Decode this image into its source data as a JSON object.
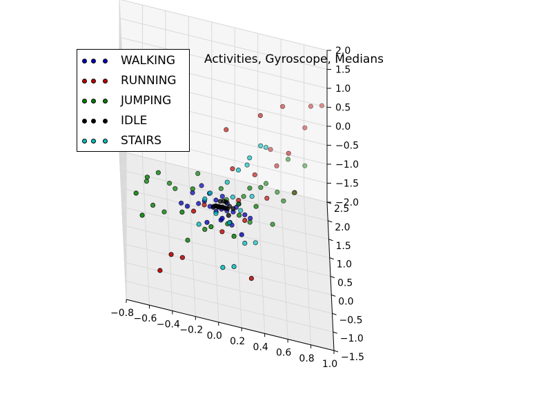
{
  "chart_data": {
    "type": "scatter",
    "projection": "3d",
    "title": "Activities, Gyroscope, Medians",
    "xlabel": "",
    "ylabel": "",
    "zlabel": "",
    "xlim": [
      -0.8,
      1.0
    ],
    "ylim": [
      -1.5,
      2.5
    ],
    "zlim": [
      -2.0,
      2.0
    ],
    "x_ticks": [
      "−0.8",
      "−0.6",
      "−0.4",
      "−0.2",
      "0.0",
      "0.2",
      "0.4",
      "0.6",
      "0.8",
      "1.0"
    ],
    "y_ticks": [
      "−1.5",
      "−1.0",
      "−0.5",
      "0.0",
      "0.5",
      "1.0",
      "1.5",
      "2.0",
      "2.5"
    ],
    "z_ticks": [
      "−2.0",
      "−1.5",
      "−1.0",
      "−0.5",
      "0.0",
      "0.5",
      "1.0",
      "1.5",
      "2.0"
    ],
    "grid": true,
    "legend_position": "top-left",
    "series": [
      {
        "name": "WALKING",
        "color": "#0000bf",
        "points": [
          [
            0.02,
            0.05,
            -0.45
          ],
          [
            0.05,
            0.1,
            -0.55
          ],
          [
            0.08,
            0.0,
            -0.4
          ],
          [
            -0.05,
            0.15,
            -0.6
          ],
          [
            0.0,
            -0.05,
            -0.5
          ],
          [
            0.1,
            0.2,
            -0.45
          ],
          [
            -0.1,
            0.0,
            -0.35
          ],
          [
            0.12,
            -0.1,
            -0.65
          ],
          [
            0.15,
            0.05,
            -0.5
          ],
          [
            -0.02,
            0.25,
            -0.7
          ],
          [
            0.2,
            0.1,
            -0.3
          ],
          [
            0.04,
            -0.2,
            -0.55
          ],
          [
            -0.15,
            0.1,
            -0.55
          ],
          [
            0.06,
            0.3,
            -0.4
          ],
          [
            -0.08,
            -0.15,
            -0.75
          ],
          [
            0.18,
            0.3,
            -0.6
          ],
          [
            0.25,
            0.0,
            -0.45
          ],
          [
            -0.2,
            0.2,
            -0.4
          ],
          [
            0.1,
            0.4,
            -0.85
          ],
          [
            0.0,
            0.0,
            -0.25
          ],
          [
            -0.3,
            0.1,
            -0.65
          ],
          [
            0.3,
            0.2,
            -0.7
          ],
          [
            0.05,
            -0.3,
            -0.4
          ],
          [
            -0.12,
            0.35,
            -0.3
          ],
          [
            0.22,
            -0.2,
            -0.8
          ],
          [
            -0.25,
            -0.1,
            -0.5
          ],
          [
            0.14,
            0.15,
            -0.95
          ],
          [
            -0.05,
            0.45,
            -0.55
          ]
        ]
      },
      {
        "name": "RUNNING",
        "color": "#bf0000",
        "points": [
          [
            0.6,
            1.5,
            1.2
          ],
          [
            0.85,
            1.9,
            1.0
          ],
          [
            0.95,
            2.2,
            0.8
          ],
          [
            0.4,
            1.0,
            1.3
          ],
          [
            0.1,
            0.8,
            0.9
          ],
          [
            0.15,
            0.5,
            0.2
          ],
          [
            -0.4,
            -0.8,
            -1.2
          ],
          [
            -0.5,
            -1.0,
            -1.5
          ],
          [
            0.3,
            -0.5,
            -1.6
          ],
          [
            0.5,
            1.8,
            -0.3
          ],
          [
            0.7,
            1.2,
            -0.7
          ],
          [
            0.45,
            0.6,
            -0.45
          ],
          [
            0.65,
            1.4,
            0.1
          ],
          [
            -0.2,
            -0.4,
            -0.3
          ],
          [
            0.2,
            0.3,
            -0.4
          ],
          [
            0.05,
            -0.2,
            -0.85
          ],
          [
            -0.3,
            -0.6,
            -1.4
          ],
          [
            0.25,
            0.0,
            -0.6
          ],
          [
            0.8,
            2.0,
            0.3
          ],
          [
            -0.1,
            0.1,
            -0.55
          ],
          [
            0.35,
            0.9,
            -0.2
          ],
          [
            0.55,
            1.6,
            -0.5
          ]
        ]
      },
      {
        "name": "JUMPING",
        "color": "#007f00",
        "points": [
          [
            -0.7,
            -0.5,
            -0.1
          ],
          [
            -0.6,
            -0.3,
            0.2
          ],
          [
            -0.65,
            -0.7,
            -0.45
          ],
          [
            -0.5,
            0.0,
            0.1
          ],
          [
            -0.55,
            -0.2,
            -0.6
          ],
          [
            -0.4,
            0.2,
            -0.3
          ],
          [
            0.8,
            2.0,
            -0.7
          ],
          [
            0.7,
            1.5,
            -1.0
          ],
          [
            0.6,
            1.0,
            -0.8
          ],
          [
            0.3,
            0.5,
            -0.2
          ],
          [
            0.2,
            0.3,
            -0.5
          ],
          [
            0.1,
            0.0,
            -0.8
          ],
          [
            0.4,
            0.8,
            -0.4
          ],
          [
            -0.3,
            -0.4,
            -0.4
          ],
          [
            -0.2,
            0.1,
            -0.2
          ],
          [
            0.0,
            0.2,
            -0.6
          ],
          [
            0.5,
            0.6,
            -1.1
          ],
          [
            -0.1,
            -0.2,
            -0.9
          ],
          [
            0.35,
            0.2,
            -0.35
          ],
          [
            -0.35,
            0.3,
            -0.5
          ],
          [
            0.15,
            -0.4,
            -0.7
          ],
          [
            0.25,
            0.7,
            -0.65
          ],
          [
            -0.45,
            -0.1,
            -0.8
          ],
          [
            0.45,
            1.1,
            -0.55
          ],
          [
            0.05,
            0.4,
            -0.3
          ],
          [
            -0.25,
            -0.3,
            -1.2
          ],
          [
            0.55,
            1.3,
            -0.9
          ],
          [
            0.2,
            -0.1,
            -0.4
          ],
          [
            -0.15,
            0.5,
            -0.15
          ],
          [
            0.3,
            0.4,
            -1.0
          ],
          [
            -0.6,
            0.1,
            -0.3
          ],
          [
            0.65,
            1.7,
            -0.35
          ],
          [
            0.1,
            0.6,
            -0.75
          ],
          [
            -0.05,
            -0.5,
            -0.5
          ]
        ]
      },
      {
        "name": "IDLE",
        "color": "#000000",
        "points": [
          [
            0.05,
            0.1,
            -0.5
          ],
          [
            0.08,
            0.12,
            -0.52
          ],
          [
            0.03,
            0.08,
            -0.48
          ],
          [
            0.1,
            0.15,
            -0.55
          ],
          [
            0.0,
            0.05,
            -0.45
          ],
          [
            0.12,
            0.18,
            -0.5
          ],
          [
            0.06,
            0.2,
            -0.58
          ],
          [
            0.02,
            0.0,
            -0.42
          ],
          [
            0.15,
            0.1,
            -0.46
          ],
          [
            -0.02,
            0.12,
            -0.55
          ],
          [
            0.09,
            0.25,
            -0.48
          ],
          [
            0.11,
            0.05,
            -0.62
          ],
          [
            0.04,
            0.15,
            -0.4
          ],
          [
            0.07,
            0.3,
            -0.52
          ]
        ]
      },
      {
        "name": "STAIRS",
        "color": "#00bfbf",
        "points": [
          [
            0.3,
            0.6,
            0.5
          ],
          [
            0.4,
            0.9,
            0.6
          ],
          [
            0.2,
            0.4,
            0.3
          ],
          [
            0.1,
            0.2,
            0.1
          ],
          [
            -0.1,
            -0.2,
            -0.1
          ],
          [
            0.05,
            -0.6,
            -1.4
          ],
          [
            0.15,
            -0.4,
            -1.5
          ],
          [
            0.25,
            0.0,
            -1.2
          ],
          [
            0.35,
            0.5,
            -1.6
          ],
          [
            -0.05,
            0.1,
            -0.2
          ],
          [
            0.15,
            0.3,
            -0.35
          ],
          [
            0.0,
            0.0,
            -0.6
          ],
          [
            0.22,
            0.45,
            -0.8
          ],
          [
            0.28,
            0.7,
            0.2
          ],
          [
            -0.15,
            -0.1,
            -0.9
          ],
          [
            0.32,
            0.55,
            -0.45
          ],
          [
            0.45,
            1.1,
            0.4
          ],
          [
            0.12,
            0.25,
            -1.0
          ]
        ]
      }
    ]
  }
}
